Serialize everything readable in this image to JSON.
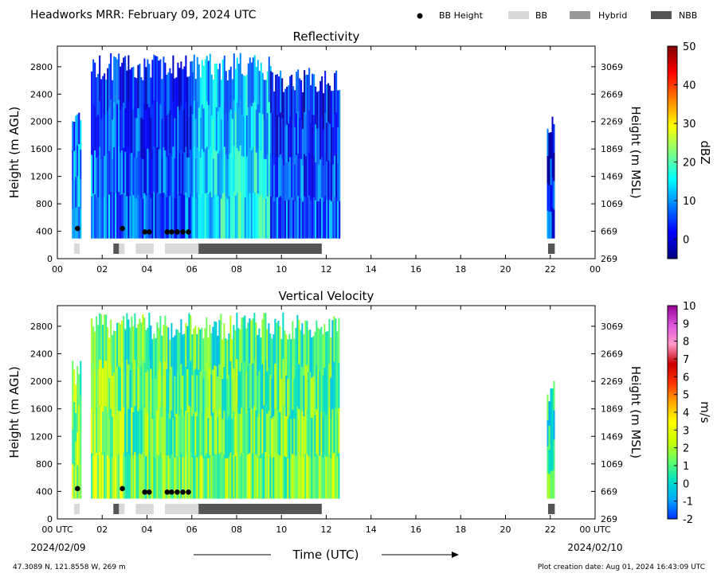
{
  "header": {
    "title": "Headworks MRR:  February 09, 2024 UTC",
    "legend": [
      {
        "label": "BB Height",
        "kind": "dot",
        "color": "#000000"
      },
      {
        "label": "BB",
        "kind": "box",
        "color": "#d9d9d9"
      },
      {
        "label": "Hybrid",
        "kind": "box",
        "color": "#999999"
      },
      {
        "label": "NBB",
        "kind": "box",
        "color": "#555555"
      }
    ]
  },
  "footer": {
    "location": "47.3089 N, 121.8558 W, 269 m",
    "creation": "Plot creation date: Aug 01, 2024 16:43:09 UTC",
    "xaxis_label": "Time (UTC)",
    "start_date": "2024/02/09",
    "end_date": "2024/02/10"
  },
  "chart_data": [
    {
      "type": "heatmap",
      "title": "Reflectivity",
      "ylabel": "Height (m AGL)",
      "ylabel_right": "Height (m MSL)",
      "xlim": [
        0,
        24
      ],
      "ylim": [
        0,
        3100
      ],
      "x_ticks": [
        "00",
        "02",
        "04",
        "06",
        "08",
        "10",
        "12",
        "14",
        "16",
        "18",
        "20",
        "22",
        "00"
      ],
      "y_ticks": [
        0,
        400,
        800,
        1200,
        1600,
        2000,
        2400,
        2800
      ],
      "y_ticks_right": [
        269,
        669,
        1069,
        1469,
        1869,
        2269,
        2669,
        3069
      ],
      "colorbar": {
        "label": "dBZ",
        "min": -5,
        "max": 50,
        "ticks": [
          0,
          10,
          20,
          30,
          40,
          50
        ],
        "stops": [
          "#00007f",
          "#0000ff",
          "#007fff",
          "#00ffff",
          "#7fff7f",
          "#ffff00",
          "#ff7f00",
          "#ff0000",
          "#7f0000"
        ]
      },
      "segments": [
        {
          "t0": 0.65,
          "t1": 1.05,
          "top": 2200,
          "bottom": 300,
          "value": 8
        },
        {
          "t0": 1.5,
          "t1": 3.0,
          "top": 3000,
          "bottom": 300,
          "value": 5
        },
        {
          "t0": 3.0,
          "t1": 6.0,
          "top": 3000,
          "bottom": 300,
          "value": 3
        },
        {
          "t0": 6.0,
          "t1": 9.5,
          "top": 3000,
          "bottom": 300,
          "value": 12
        },
        {
          "t0": 9.5,
          "t1": 12.6,
          "top": 2800,
          "bottom": 300,
          "value": 3
        },
        {
          "t0": 21.85,
          "t1": 22.15,
          "top": 2100,
          "bottom": 300,
          "value": 2
        }
      ],
      "bb_height_points": [
        {
          "t": 0.9,
          "h": 440
        },
        {
          "t": 2.9,
          "h": 440
        },
        {
          "t": 3.9,
          "h": 390
        },
        {
          "t": 4.1,
          "h": 390
        },
        {
          "t": 4.9,
          "h": 390
        },
        {
          "t": 5.1,
          "h": 390
        },
        {
          "t": 5.35,
          "h": 390
        },
        {
          "t": 5.6,
          "h": 390
        },
        {
          "t": 5.85,
          "h": 390
        }
      ],
      "bb_bars": [
        {
          "t0": 0.75,
          "t1": 1.0,
          "kind": "BB"
        },
        {
          "t0": 2.5,
          "t1": 2.75,
          "kind": "NBB"
        },
        {
          "t0": 2.75,
          "t1": 3.0,
          "kind": "BB"
        },
        {
          "t0": 3.5,
          "t1": 4.3,
          "kind": "BB"
        },
        {
          "t0": 4.8,
          "t1": 6.3,
          "kind": "BB"
        },
        {
          "t0": 6.3,
          "t1": 11.8,
          "kind": "NBB"
        },
        {
          "t0": 21.9,
          "t1": 22.2,
          "kind": "NBB"
        }
      ]
    },
    {
      "type": "heatmap",
      "title": "Vertical Velocity",
      "ylabel": "Height (m AGL)",
      "ylabel_right": "Height (m MSL)",
      "xlim": [
        0,
        24
      ],
      "ylim": [
        0,
        3100
      ],
      "x_ticks": [
        "00 UTC",
        "02",
        "04",
        "06",
        "08",
        "10",
        "12",
        "14",
        "16",
        "18",
        "20",
        "22",
        "00 UTC"
      ],
      "y_ticks": [
        0,
        400,
        800,
        1200,
        1600,
        2000,
        2400,
        2800
      ],
      "y_ticks_right": [
        269,
        669,
        1069,
        1469,
        1869,
        2269,
        2669,
        3069
      ],
      "colorbar": {
        "label": "m/s",
        "min": -2,
        "max": 10,
        "ticks": [
          -2,
          -1,
          0,
          1,
          2,
          3,
          4,
          5,
          6,
          7,
          8,
          9,
          10
        ],
        "stops": [
          "#0033ff",
          "#00aaff",
          "#00e0c0",
          "#66ff66",
          "#ccff00",
          "#ffff00",
          "#ffaa00",
          "#ff3300",
          "#cc0000",
          "#ff99cc",
          "#dd55dd",
          "#990099"
        ]
      },
      "segments": [
        {
          "t0": 0.65,
          "t1": 1.05,
          "top": 2300,
          "bottom": 300,
          "value": 1.5
        },
        {
          "t0": 1.5,
          "t1": 3.0,
          "top": 3000,
          "bottom": 300,
          "value": 1.2
        },
        {
          "t0": 3.0,
          "t1": 12.6,
          "top": 3000,
          "bottom": 300,
          "value": 0.8
        },
        {
          "t0": 21.85,
          "t1": 22.15,
          "top": 2100,
          "bottom": 300,
          "value": 0.3
        }
      ],
      "bb_height_points": [
        {
          "t": 0.9,
          "h": 440
        },
        {
          "t": 2.9,
          "h": 440
        },
        {
          "t": 3.9,
          "h": 390
        },
        {
          "t": 4.1,
          "h": 390
        },
        {
          "t": 4.9,
          "h": 390
        },
        {
          "t": 5.1,
          "h": 390
        },
        {
          "t": 5.35,
          "h": 390
        },
        {
          "t": 5.6,
          "h": 390
        },
        {
          "t": 5.85,
          "h": 390
        }
      ],
      "bb_bars": [
        {
          "t0": 0.75,
          "t1": 1.0,
          "kind": "BB"
        },
        {
          "t0": 2.5,
          "t1": 2.75,
          "kind": "NBB"
        },
        {
          "t0": 2.75,
          "t1": 3.0,
          "kind": "BB"
        },
        {
          "t0": 3.5,
          "t1": 4.3,
          "kind": "BB"
        },
        {
          "t0": 4.8,
          "t1": 6.3,
          "kind": "BB"
        },
        {
          "t0": 6.3,
          "t1": 11.8,
          "kind": "NBB"
        },
        {
          "t0": 21.9,
          "t1": 22.2,
          "kind": "NBB"
        }
      ]
    }
  ]
}
